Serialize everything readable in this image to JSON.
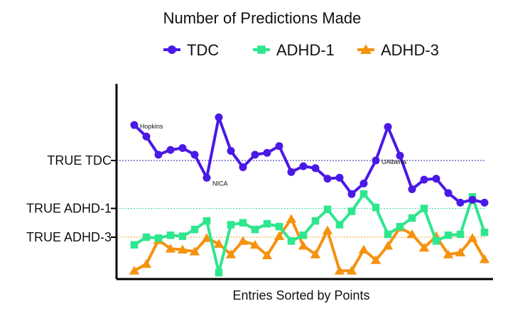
{
  "chart_data": {
    "type": "line",
    "title": "Number of Predictions Made",
    "xlabel": "Entries Sorted by Points",
    "ylabel": "",
    "x": [
      1,
      2,
      3,
      4,
      5,
      6,
      7,
      8,
      9,
      10,
      11,
      12,
      13,
      14,
      15,
      16,
      17,
      18,
      19,
      20,
      21,
      22,
      23,
      24,
      25,
      26,
      27,
      28,
      29,
      30
    ],
    "series": [
      {
        "name": "TDC",
        "color": "#4a19e6",
        "marker": "circle",
        "values": [
          157,
          145,
          126,
          131,
          133,
          126,
          102,
          165,
          130,
          113,
          126,
          128,
          135,
          108,
          114,
          112,
          101,
          102,
          85,
          96,
          120,
          155,
          125,
          90,
          100,
          101,
          86,
          76,
          79,
          76
        ]
      },
      {
        "name": "ADHD-1",
        "color": "#2ee68e",
        "marker": "square",
        "values": [
          32,
          40,
          39,
          42,
          41,
          48,
          57,
          3,
          53,
          55,
          48,
          54,
          51,
          36,
          42,
          57,
          69,
          53,
          67,
          85,
          71,
          43,
          51,
          60,
          70,
          36,
          42,
          43,
          82,
          45
        ]
      },
      {
        "name": "ADHD-3",
        "color": "#f5920f",
        "marker": "triangle",
        "values": [
          5,
          12,
          37,
          28,
          27,
          25,
          39,
          33,
          22,
          36,
          32,
          21,
          41,
          59,
          31,
          22,
          47,
          5,
          5,
          27,
          16,
          31,
          50,
          43,
          29,
          41,
          22,
          24,
          39,
          17
        ]
      }
    ],
    "reference_lines": [
      {
        "label": "TRUE TDC",
        "value": 120,
        "color": "#2a1fb0"
      },
      {
        "label": "TRUE ADHD-1",
        "value": 70,
        "color": "#3fd9b0"
      },
      {
        "label": "TRUE ADHD-3",
        "value": 40,
        "color": "#f5a020"
      }
    ],
    "annotations": [
      {
        "text": "Hopkins",
        "series": "TDC",
        "index": 0
      },
      {
        "text": "NICA",
        "series": "TDC",
        "index": 6
      },
      {
        "text": "UAlberta",
        "series": "TDC",
        "index": 20
      }
    ],
    "ylim": [
      0,
      200
    ],
    "grid": false,
    "legend_position": "top"
  }
}
